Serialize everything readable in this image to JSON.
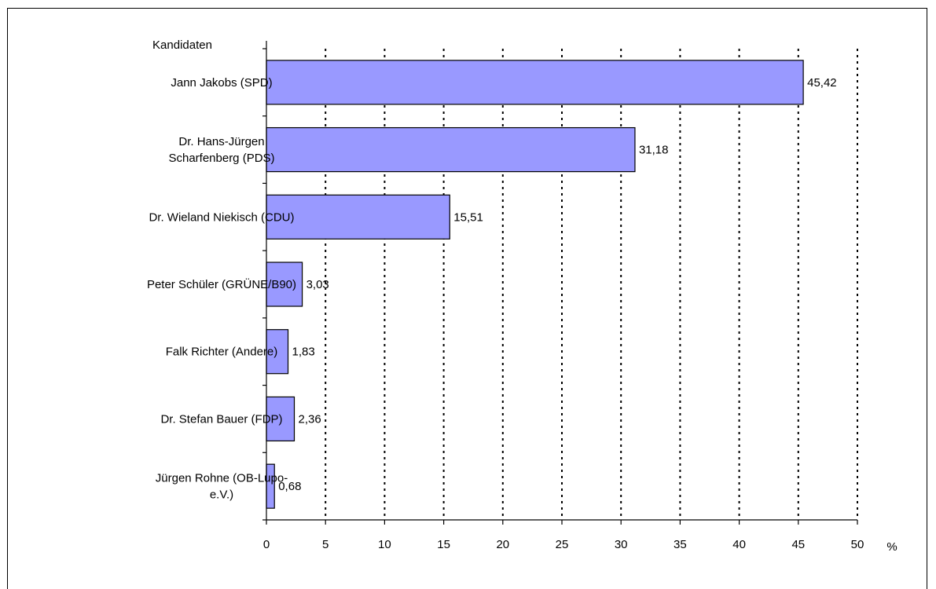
{
  "chart_data": {
    "type": "bar",
    "orientation": "horizontal",
    "ylabel": "Kandidaten",
    "xlabel": "%",
    "categories": [
      "Jann Jakobs (SPD)",
      "Dr. Hans-Jürgen Scharfenberg (PDS)",
      "Dr. Wieland Niekisch (CDU)",
      "Peter Schüler (GRÜNE/B90)",
      "Falk Richter (Andere)",
      "Dr. Stefan Bauer (FDP)",
      "Jürgen Rohne (OB-Lupo-e.V.)"
    ],
    "category_lines": [
      [
        "Jann Jakobs (SPD)"
      ],
      [
        "Dr. Hans-Jürgen",
        "Scharfenberg (PDS)"
      ],
      [
        "Dr. Wieland Niekisch (CDU)"
      ],
      [
        "Peter Schüler (GRÜNE/B90)"
      ],
      [
        "Falk Richter (Andere)"
      ],
      [
        "Dr. Stefan Bauer (FDP)"
      ],
      [
        "Jürgen Rohne (OB-Lupo-",
        "e.V.)"
      ]
    ],
    "values": [
      45.42,
      31.18,
      15.51,
      3.03,
      1.83,
      2.36,
      0.68
    ],
    "value_labels": [
      "45,42",
      "31,18",
      "15,51",
      "3,03",
      "1,83",
      "2,36",
      "0,68"
    ],
    "xlim": [
      0,
      50
    ],
    "xticks": [
      0,
      5,
      10,
      15,
      20,
      25,
      30,
      35,
      40,
      45,
      50
    ],
    "grid": "vertical dotted",
    "legend": "none",
    "colors": {
      "bar_fill": "#9999ff",
      "bar_stroke": "#000000",
      "grid": "#000000"
    }
  }
}
